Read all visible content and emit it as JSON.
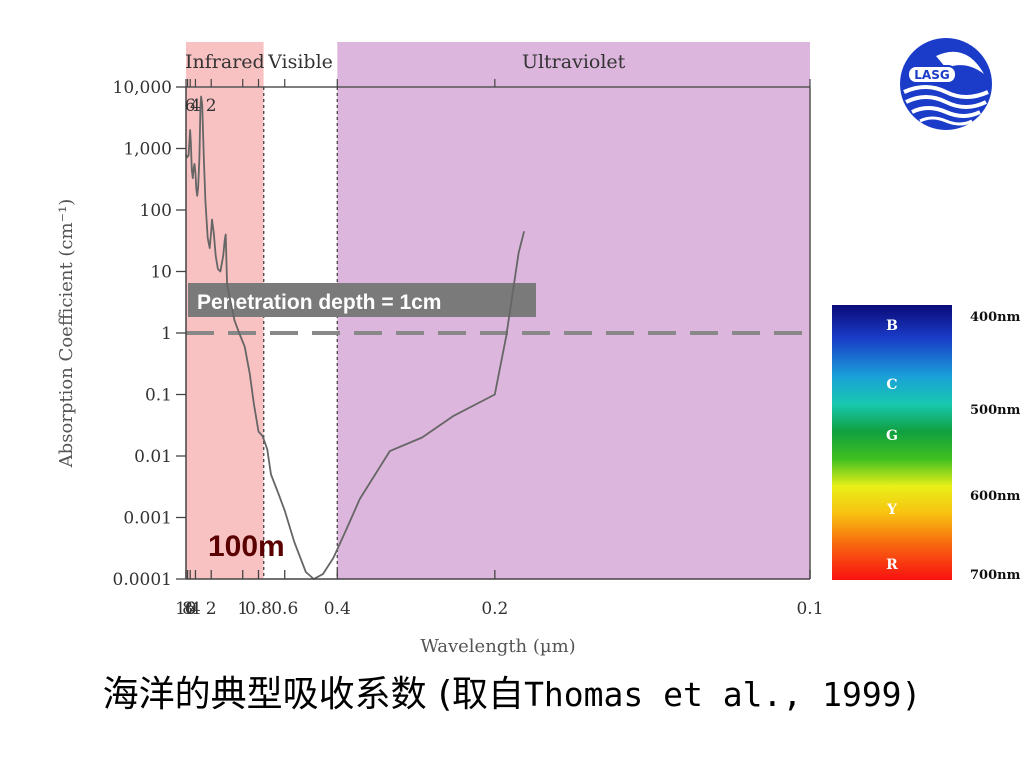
{
  "chart_data": {
    "type": "line",
    "xlabel": "Wavelength (µm)",
    "ylabel": "Absorption Coefficient (cm⁻¹)",
    "x_scale": "reciprocal",
    "y_scale": "log",
    "xlim": [
      10,
      0.1
    ],
    "ylim": [
      0.0001,
      10000
    ],
    "x_ticks": [
      {
        "v": 10,
        "label": "10"
      },
      {
        "v": 8,
        "label": "8"
      },
      {
        "v": 6,
        "label": "6"
      },
      {
        "v": 4,
        "label": "4"
      },
      {
        "v": 2,
        "label": "2"
      },
      {
        "v": 1,
        "label": "1"
      },
      {
        "v": 0.8,
        "label": "0.8"
      },
      {
        "v": 0.6,
        "label": "0.6"
      },
      {
        "v": 0.4,
        "label": "0.4"
      },
      {
        "v": 0.2,
        "label": "0.2"
      },
      {
        "v": 0.1,
        "label": "0.1"
      }
    ],
    "y_ticks": [
      {
        "v": 10000,
        "label": "10,000"
      },
      {
        "v": 1000,
        "label": "1,000"
      },
      {
        "v": 100,
        "label": "100"
      },
      {
        "v": 10,
        "label": "10"
      },
      {
        "v": 1,
        "label": "1"
      },
      {
        "v": 0.1,
        "label": "0.1"
      },
      {
        "v": 0.01,
        "label": "0.01"
      },
      {
        "v": 0.001,
        "label": "0.001"
      },
      {
        "v": 0.0001,
        "label": "0.0001"
      }
    ],
    "top_ticks": [
      {
        "v": 6,
        "label": "6"
      },
      {
        "v": 4,
        "label": "4"
      },
      {
        "v": 2,
        "label": "2"
      }
    ],
    "regions": [
      {
        "label": "Infrared",
        "from": 10,
        "to": 0.75,
        "color": "#f9c2c2"
      },
      {
        "label": "Visible",
        "from": 0.75,
        "to": 0.4,
        "color": "#ffffff"
      },
      {
        "label": "Ultraviolet",
        "from": 0.4,
        "to": 0.1,
        "color": "#dcb6dc"
      }
    ],
    "boundary_lines": [
      0.75,
      0.4
    ],
    "threshold": {
      "y": 1,
      "label": "Penetration depth = 1cm"
    },
    "annotation": "100m",
    "series": [
      {
        "color": "#666666",
        "points": [
          [
            10,
            800
          ],
          [
            8.5,
            720
          ],
          [
            7.2,
            760
          ],
          [
            6.5,
            1250
          ],
          [
            6.05,
            2000
          ],
          [
            5.7,
            1300
          ],
          [
            5.2,
            450
          ],
          [
            4.8,
            330
          ],
          [
            4.5,
            480
          ],
          [
            4.25,
            560
          ],
          [
            4.0,
            390
          ],
          [
            3.8,
            220
          ],
          [
            3.6,
            170
          ],
          [
            3.4,
            240
          ],
          [
            3.2,
            700
          ],
          [
            3.05,
            4500
          ],
          [
            2.95,
            7000
          ],
          [
            2.8,
            5200
          ],
          [
            2.6,
            650
          ],
          [
            2.45,
            140
          ],
          [
            2.25,
            35
          ],
          [
            2.1,
            24
          ],
          [
            2.0,
            45
          ],
          [
            1.95,
            70
          ],
          [
            1.85,
            42
          ],
          [
            1.75,
            18
          ],
          [
            1.65,
            11
          ],
          [
            1.55,
            10
          ],
          [
            1.45,
            18
          ],
          [
            1.4,
            32
          ],
          [
            1.37,
            40
          ],
          [
            1.33,
            6
          ],
          [
            1.25,
            3.5
          ],
          [
            1.15,
            1.6
          ],
          [
            1.05,
            0.95
          ],
          [
            0.97,
            0.6
          ],
          [
            0.9,
            0.22
          ],
          [
            0.85,
            0.07
          ],
          [
            0.8,
            0.025
          ],
          [
            0.76,
            0.021
          ],
          [
            0.72,
            0.013
          ],
          [
            0.69,
            0.005
          ],
          [
            0.64,
            0.0025
          ],
          [
            0.6,
            0.0013
          ],
          [
            0.55,
            0.0004
          ],
          [
            0.5,
            0.00013
          ],
          [
            0.47,
            0.0001
          ],
          [
            0.44,
            0.00012
          ],
          [
            0.41,
            0.00022
          ],
          [
            0.38,
            0.0006
          ],
          [
            0.35,
            0.002
          ],
          [
            0.3,
            0.012
          ],
          [
            0.26,
            0.02
          ],
          [
            0.23,
            0.045
          ],
          [
            0.2,
            0.1
          ],
          [
            0.193,
            0.9
          ],
          [
            0.186,
            20
          ],
          [
            0.183,
            45
          ]
        ]
      }
    ]
  },
  "caption": {
    "cjk": "海洋的典型吸收系数 (取自",
    "latin": "Thomas et al., 1999)"
  },
  "logo": {
    "text": "LASG"
  },
  "spectrum": {
    "letters": [
      {
        "label": "B",
        "top": 318
      },
      {
        "label": "C",
        "top": 377
      },
      {
        "label": "G",
        "top": 428
      },
      {
        "label": "Y",
        "top": 502
      },
      {
        "label": "R",
        "top": 557
      }
    ],
    "nm": [
      {
        "label": "400nm",
        "top": 310
      },
      {
        "label": "500nm",
        "top": 403
      },
      {
        "label": "600nm",
        "top": 489
      },
      {
        "label": "700nm",
        "top": 568
      }
    ]
  }
}
